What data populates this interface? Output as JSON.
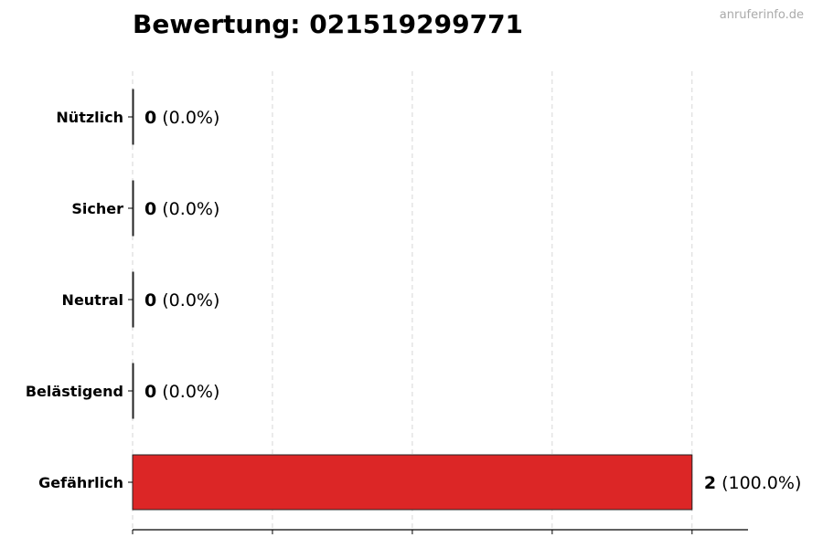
{
  "chart_data": {
    "type": "bar",
    "orientation": "horizontal",
    "title": "Bewertung: 021519299771",
    "categories": [
      "Nützlich",
      "Sicher",
      "Neutral",
      "Belästigend",
      "Gefährlich"
    ],
    "values": [
      0,
      0,
      0,
      0,
      2
    ],
    "value_labels": [
      "0",
      "0",
      "0",
      "0",
      "2"
    ],
    "percent_labels": [
      "(0.0%)",
      "(0.0%)",
      "(0.0%)",
      "(0.0%)",
      "(100.0%)"
    ],
    "colors": [
      "#22c55e",
      "#3b82f6",
      "#9ca3af",
      "#f59e0b",
      "#dc2626"
    ],
    "xlim": [
      0,
      2.2
    ],
    "xticks": [
      0,
      0.5,
      1,
      1.5,
      2
    ],
    "grid": "vertical dashed",
    "xlabel": "",
    "ylabel": ""
  },
  "watermark": "anruferinfo.de"
}
